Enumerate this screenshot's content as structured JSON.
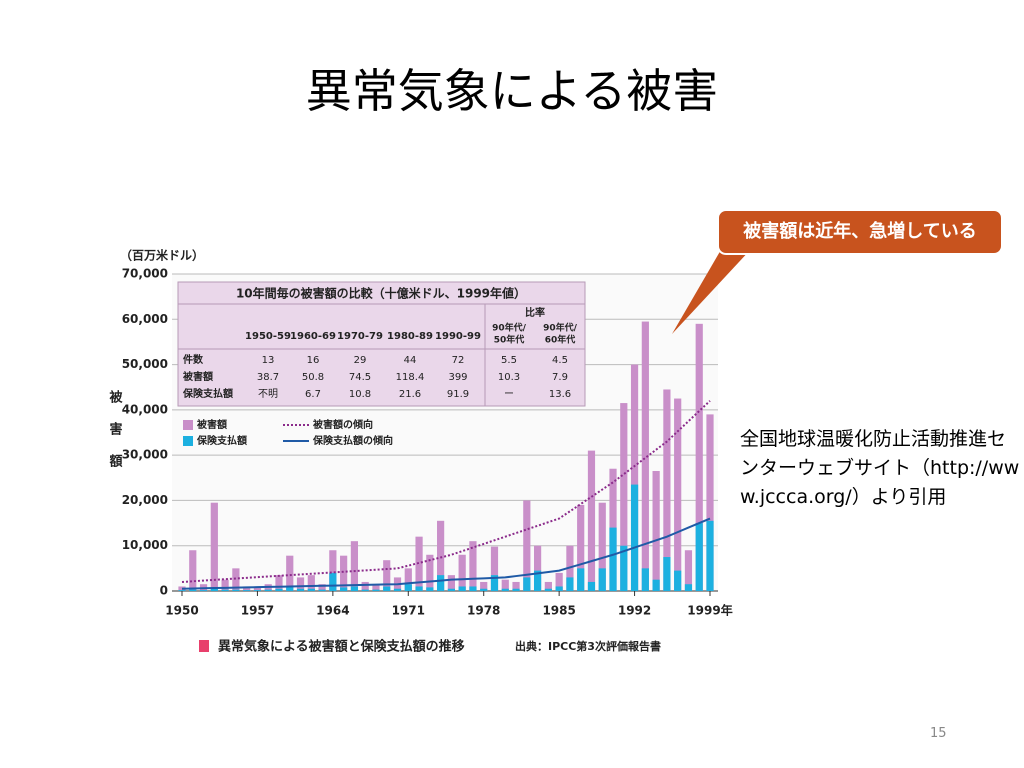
{
  "title": "異常気象による被害",
  "callout": "被害額は近年、急増している",
  "source_note": "全国地球温暖化防止活動推進センターウェブサイト（http://www.jccca.org/）より引用",
  "page_number": "15",
  "chart_data": {
    "type": "bar",
    "y_unit": "（百万米ドル）",
    "y_label": [
      "被",
      "害",
      "額"
    ],
    "caption": "異常気象による被害額と保険支払額の推移",
    "source": "出典：IPCC第3次評価報告書",
    "x": [
      1950,
      1951,
      1952,
      1953,
      1954,
      1955,
      1956,
      1957,
      1958,
      1959,
      1960,
      1961,
      1962,
      1963,
      1964,
      1965,
      1966,
      1967,
      1968,
      1969,
      1970,
      1971,
      1972,
      1973,
      1974,
      1975,
      1976,
      1977,
      1978,
      1979,
      1980,
      1981,
      1982,
      1983,
      1984,
      1985,
      1986,
      1987,
      1988,
      1989,
      1990,
      1991,
      1992,
      1993,
      1994,
      1995,
      1996,
      1997,
      1998,
      1999
    ],
    "xlim": [
      1950,
      1999
    ],
    "xticks": [
      1950,
      1957,
      1964,
      1971,
      1978,
      1985,
      1992,
      {
        "value": 1999,
        "label": "1999年"
      }
    ],
    "ylim": [
      0,
      70000
    ],
    "yticks": [
      {
        "value": 0,
        "label": "0"
      },
      {
        "value": 10000,
        "label": "10,000"
      },
      {
        "value": 20000,
        "label": "20,000"
      },
      {
        "value": 30000,
        "label": "30,000"
      },
      {
        "value": 40000,
        "label": "40,000"
      },
      {
        "value": 50000,
        "label": "50,000"
      },
      {
        "value": 60000,
        "label": "60,000"
      },
      {
        "value": 70000,
        "label": "70,000"
      }
    ],
    "grid": true,
    "series": [
      {
        "name": "被害額",
        "type": "bar",
        "color": "#c98fc9",
        "values": [
          1000,
          9000,
          1500,
          19500,
          2500,
          5000,
          1000,
          1000,
          1500,
          3500,
          7800,
          3000,
          3500,
          1500,
          9000,
          7800,
          11000,
          2000,
          1500,
          6800,
          3000,
          5000,
          12000,
          8000,
          15500,
          3500,
          8000,
          11000,
          2000,
          9800,
          2500,
          2000,
          20000,
          10000,
          2000,
          4000,
          10000,
          19000,
          31000,
          19500,
          27000,
          41500,
          50000,
          59500,
          26500,
          44500,
          42500,
          9000,
          59000,
          39000
        ]
      },
      {
        "name": "保険支払額",
        "type": "bar",
        "color": "#1cb0e0",
        "values": [
          200,
          300,
          200,
          500,
          300,
          300,
          200,
          200,
          300,
          500,
          800,
          500,
          500,
          300,
          4000,
          800,
          1000,
          300,
          300,
          1000,
          500,
          1500,
          1000,
          800,
          3500,
          500,
          1000,
          1000,
          500,
          3500,
          500,
          500,
          3000,
          4500,
          500,
          1000,
          3000,
          5000,
          2000,
          5000,
          14000,
          10000,
          23500,
          5000,
          2500,
          7500,
          4500,
          1500,
          15000,
          15500
        ]
      },
      {
        "name": "被害額の傾向",
        "type": "line",
        "dash": true,
        "color": "#8b2b8b",
        "values": [
          2000,
          2150,
          2300,
          2450,
          2600,
          2750,
          2900,
          3050,
          3200,
          3350,
          3500,
          3650,
          3800,
          3950,
          4100,
          4250,
          4400,
          4550,
          4700,
          4850,
          5000,
          5600,
          6200,
          6800,
          7400,
          8000,
          8800,
          9600,
          10400,
          11200,
          12000,
          12800,
          13600,
          14400,
          15200,
          16000,
          17600,
          19200,
          20800,
          22400,
          24000,
          25800,
          27600,
          29400,
          31200,
          33000,
          35250,
          37500,
          39750,
          42000
        ]
      },
      {
        "name": "保険支払額の傾向",
        "type": "line",
        "dash": false,
        "color": "#1f5aa6",
        "values": [
          500,
          550,
          600,
          650,
          700,
          750,
          800,
          850,
          900,
          950,
          1000,
          1050,
          1100,
          1150,
          1200,
          1250,
          1300,
          1350,
          1400,
          1450,
          1500,
          1700,
          1900,
          2100,
          2300,
          2500,
          2600,
          2700,
          2800,
          2900,
          3000,
          3300,
          3600,
          3900,
          4200,
          4500,
          5200,
          5900,
          6600,
          7300,
          8000,
          8800,
          9600,
          10400,
          11200,
          12000,
          13000,
          14000,
          15000,
          16000
        ]
      }
    ],
    "inset_table": {
      "title": "10年間毎の被害額の比較（十億米ドル、1999年値）",
      "columns": [
        "1950-59",
        "1960-69",
        "1970-79",
        "1980-89",
        "1990-99"
      ],
      "ratio_title": "比率",
      "ratio_columns": [
        [
          "90年代/",
          "50年代"
        ],
        [
          "90年代/",
          "60年代"
        ]
      ],
      "rows": [
        {
          "label": "件数",
          "cells": [
            13,
            16,
            29,
            44,
            72,
            5.5,
            4.5
          ]
        },
        {
          "label": "被害額",
          "cells": [
            38.7,
            50.8,
            74.5,
            118.4,
            399,
            10.3,
            7.9
          ]
        },
        {
          "label": "保険支払額",
          "cells": [
            "不明",
            6.7,
            10.8,
            21.6,
            91.9,
            "ー",
            13.6
          ]
        }
      ]
    }
  }
}
